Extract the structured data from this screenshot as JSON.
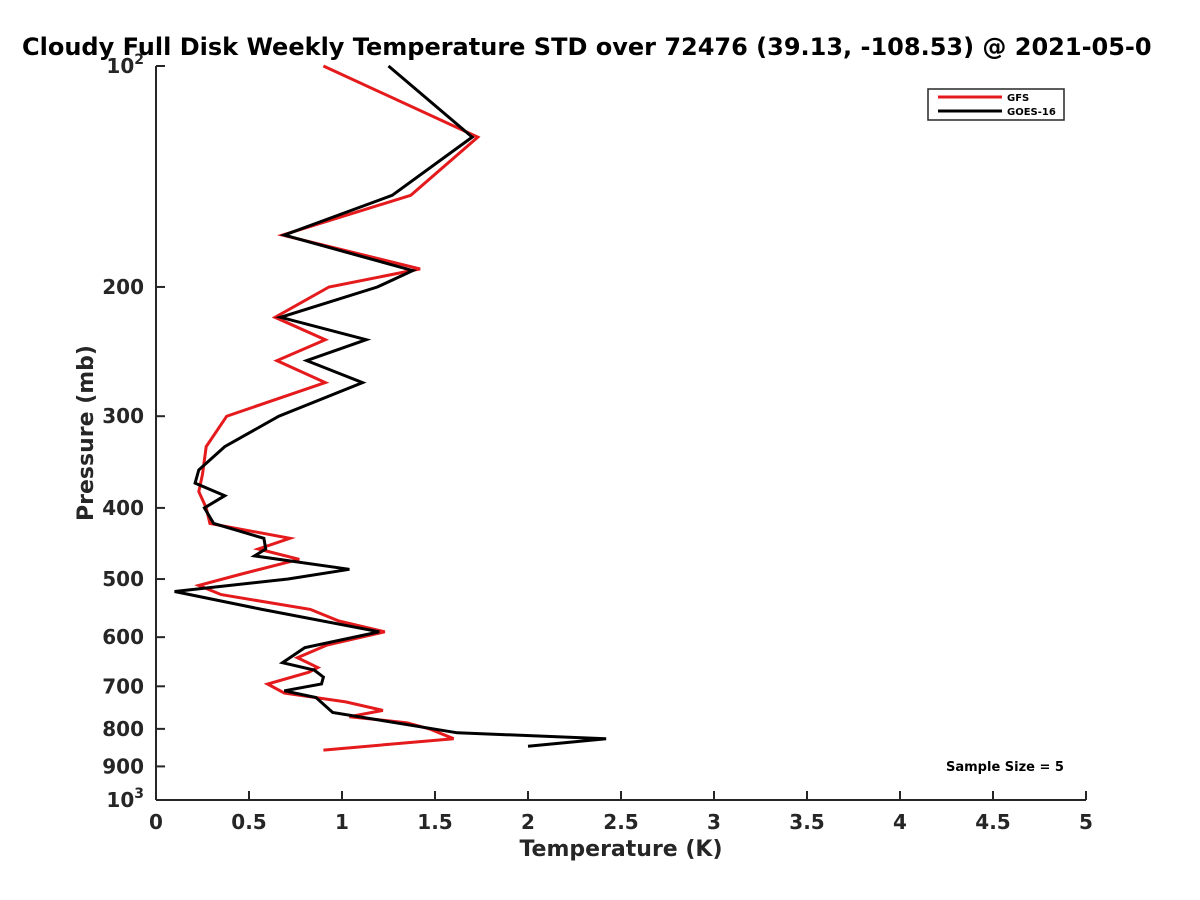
{
  "chart_data": {
    "type": "line",
    "title": "Cloudy Full Disk Weekly Temperature STD over 72476 (39.13, -108.53) @ 2021-05-0",
    "xlabel": "Temperature (K)",
    "ylabel": "Pressure (mb)",
    "xlim": [
      0,
      5
    ],
    "ylim": [
      100,
      1000
    ],
    "y_scale": "log",
    "y_reversed": true,
    "x_ticks": [
      "0",
      "0.5",
      "1",
      "1.5",
      "2",
      "2.5",
      "3",
      "3.5",
      "4",
      "4.5",
      "5"
    ],
    "x_tick_values": [
      0,
      0.5,
      1,
      1.5,
      2,
      2.5,
      3,
      3.5,
      4,
      4.5,
      5
    ],
    "y_ticks": [
      {
        "value": 100,
        "base": "10",
        "exp": "2"
      },
      {
        "value": 200,
        "label": "200"
      },
      {
        "value": 300,
        "label": "300"
      },
      {
        "value": 400,
        "label": "400"
      },
      {
        "value": 500,
        "label": "500"
      },
      {
        "value": 600,
        "label": "600"
      },
      {
        "value": 700,
        "label": "700"
      },
      {
        "value": 800,
        "label": "800"
      },
      {
        "value": 900,
        "label": "900"
      },
      {
        "value": 1000,
        "base": "10",
        "exp": "3"
      }
    ],
    "legend": {
      "position": "top-right"
    },
    "annotation": "Sample Size = 5",
    "grid": false,
    "series": [
      {
        "name": "GFS",
        "color": "#e41a1c",
        "points": [
          [
            0.9,
            100
          ],
          [
            1.73,
            125
          ],
          [
            1.37,
            150
          ],
          [
            0.68,
            170
          ],
          [
            1.42,
            189
          ],
          [
            0.93,
            200
          ],
          [
            0.64,
            220
          ],
          [
            0.91,
            236
          ],
          [
            0.65,
            252
          ],
          [
            0.91,
            270
          ],
          [
            0.38,
            300
          ],
          [
            0.27,
            330
          ],
          [
            0.25,
            360
          ],
          [
            0.23,
            380
          ],
          [
            0.27,
            400
          ],
          [
            0.29,
            420
          ],
          [
            0.72,
            440
          ],
          [
            0.55,
            455
          ],
          [
            0.77,
            470
          ],
          [
            0.45,
            493
          ],
          [
            0.23,
            510
          ],
          [
            0.35,
            525
          ],
          [
            0.83,
            550
          ],
          [
            0.98,
            570
          ],
          [
            1.23,
            590
          ],
          [
            0.92,
            615
          ],
          [
            0.76,
            640
          ],
          [
            0.87,
            660
          ],
          [
            0.82,
            670
          ],
          [
            0.6,
            695
          ],
          [
            0.69,
            715
          ],
          [
            1.02,
            735
          ],
          [
            1.22,
            755
          ],
          [
            1.04,
            770
          ],
          [
            1.35,
            785
          ],
          [
            1.47,
            800
          ],
          [
            1.6,
            825
          ],
          [
            0.9,
            855
          ]
        ]
      },
      {
        "name": "GOES-16",
        "color": "#000000",
        "points": [
          [
            1.25,
            100
          ],
          [
            1.7,
            125
          ],
          [
            1.27,
            150
          ],
          [
            0.69,
            170
          ],
          [
            1.38,
            190
          ],
          [
            1.19,
            200
          ],
          [
            0.67,
            220
          ],
          [
            1.13,
            236
          ],
          [
            0.81,
            252
          ],
          [
            1.11,
            270
          ],
          [
            0.66,
            300
          ],
          [
            0.37,
            330
          ],
          [
            0.23,
            355
          ],
          [
            0.21,
            370
          ],
          [
            0.37,
            385
          ],
          [
            0.26,
            400
          ],
          [
            0.31,
            420
          ],
          [
            0.58,
            440
          ],
          [
            0.59,
            455
          ],
          [
            0.53,
            465
          ],
          [
            1.04,
            485
          ],
          [
            0.71,
            500
          ],
          [
            0.1,
            520
          ],
          [
            0.57,
            550
          ],
          [
            1.2,
            590
          ],
          [
            0.8,
            620
          ],
          [
            0.68,
            650
          ],
          [
            0.85,
            665
          ],
          [
            0.9,
            680
          ],
          [
            0.89,
            695
          ],
          [
            0.69,
            710
          ],
          [
            0.86,
            725
          ],
          [
            0.95,
            760
          ],
          [
            1.62,
            810
          ],
          [
            2.42,
            825
          ],
          [
            2.0,
            845
          ]
        ]
      }
    ]
  }
}
